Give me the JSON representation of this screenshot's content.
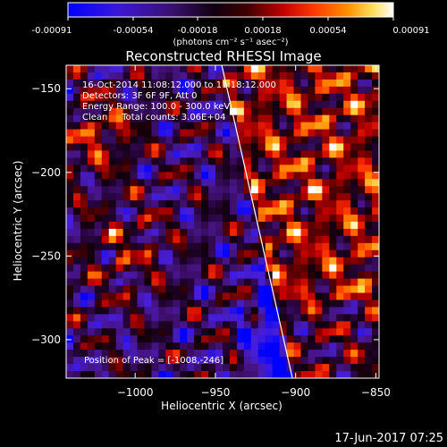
{
  "colors": {
    "background": "#000000",
    "text": "#ffffff",
    "limb": "#ffffff"
  },
  "colorbar": {
    "tick_labels": [
      "-0.00091",
      "-0.00054",
      "-0.00018",
      "0.00018",
      "0.00054",
      "0.00091"
    ],
    "unit_text": "(photons cm⁻² s⁻¹ asec⁻²)",
    "range": [
      -0.00091,
      0.00091
    ],
    "colormap": "blue-purple-black-red-orange-yellow-white"
  },
  "chart_data": {
    "type": "heatmap",
    "title": "Reconstructed RHESSI Image",
    "xlabel": "Heliocentric X (arcsec)",
    "ylabel": "Heliocentric Y (arcsec)",
    "xlim": [
      -1043,
      -848
    ],
    "ylim": [
      -323,
      -136
    ],
    "xticks": [
      -1000,
      -950,
      -900,
      -850
    ],
    "xtick_labels": [
      "−1000",
      "−950",
      "−900",
      "−850"
    ],
    "yticks": [
      -150,
      -200,
      -250,
      -300
    ],
    "ytick_labels": [
      "−150",
      "−200",
      "−250",
      "−300"
    ],
    "annotations": [
      "16-Oct-2014 11:08:12.000 to 11:18:12.000",
      "Detectors: 3F 6F 9F, Att 0",
      "Energy Range: 100.0 - 300.0 keV",
      "Clean     Total counts: 3.06E+04"
    ],
    "peak_label": "Position of Peak = [-1008,-246]",
    "peak": {
      "x": -1008,
      "y": -246
    },
    "limb_line": [
      {
        "x": -946,
        "y": -136
      },
      {
        "x": -902,
        "y": -323
      }
    ]
  },
  "footer": {
    "date": "17-Jun-2017 07:25"
  }
}
